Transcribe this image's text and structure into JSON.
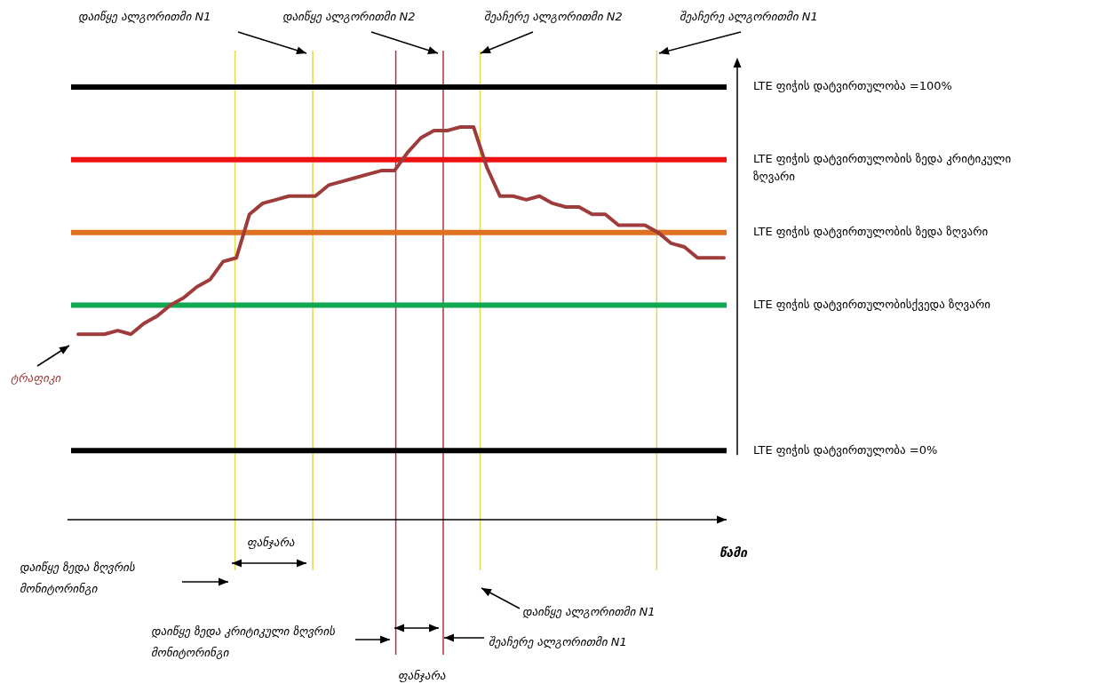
{
  "chart_data": {
    "type": "line",
    "xlabel": "წამი",
    "categories": [
      null,
      null,
      null,
      null,
      null,
      null,
      null,
      null,
      null,
      null,
      null,
      null,
      null,
      null,
      null,
      null,
      null,
      null,
      null,
      null,
      null,
      null,
      null,
      null,
      null,
      null,
      null,
      null,
      null,
      null,
      null,
      null,
      null,
      null,
      null,
      null,
      null,
      null,
      null,
      null,
      null,
      null,
      null,
      null,
      null,
      null,
      null,
      null,
      null,
      null
    ],
    "series": [
      {
        "name": "ტრაფიკი",
        "color": "#9e3b3b",
        "values": [
          32,
          32,
          32,
          33,
          32,
          35,
          37,
          40,
          42,
          45,
          47,
          52,
          53,
          65,
          68,
          69,
          70,
          70,
          70,
          73,
          74,
          75,
          76,
          77,
          77,
          82,
          86,
          88,
          88,
          89,
          89,
          78,
          70,
          70,
          69,
          70,
          68,
          67,
          67,
          65,
          65,
          62,
          62,
          62,
          60,
          57,
          56,
          53,
          53,
          53
        ]
      }
    ],
    "ylim": [
      -19,
      110
    ],
    "yticks": [
      {
        "value": 0,
        "label": "LTE ფიჭის დატვირთულობა =0%"
      },
      {
        "value": 100,
        "label": "LTE ფიჭის დატვირთულობა =100%"
      }
    ],
    "tick_labels": "y",
    "grid": false,
    "legend": false,
    "marker": "none",
    "line_style": "solid",
    "ref_lines": [
      {
        "axis": "y",
        "value": 100,
        "color": "#000000"
      },
      {
        "axis": "y",
        "value": 80,
        "label": "LTE ფიჭის დატვირთულობის ზედა კრიტიკული ზღვარი",
        "color": "#ee1111"
      },
      {
        "axis": "y",
        "value": 60,
        "label": "LTE ფიჭის დატვირთულობის ზედა ზღვარი",
        "color": "#e07020"
      },
      {
        "axis": "y",
        "value": 40,
        "label": "LTE ფიჭის დატვირთულობისქვედა ზღვარი",
        "color": "#10a850"
      },
      {
        "axis": "y",
        "value": 0,
        "color": "#000000"
      }
    ],
    "annotations": [
      "დაიწყე ალგორითმი N1",
      "დაიწყე ალგორითმი N2",
      "შეაჩერე ალგორითმი N2",
      "შეაჩერე ალგორითმი N1",
      "ფანჯარა",
      "დაიწყე ზედა ზღვრის მონიტორინგი",
      "დაიწყე ზედა კრიტიკული ზღვრის მონიტორინგი",
      "დაიწყე ალგორითმი N1",
      "შეაჩერე ალგორითმი N1",
      "ფანჯარა"
    ]
  }
}
